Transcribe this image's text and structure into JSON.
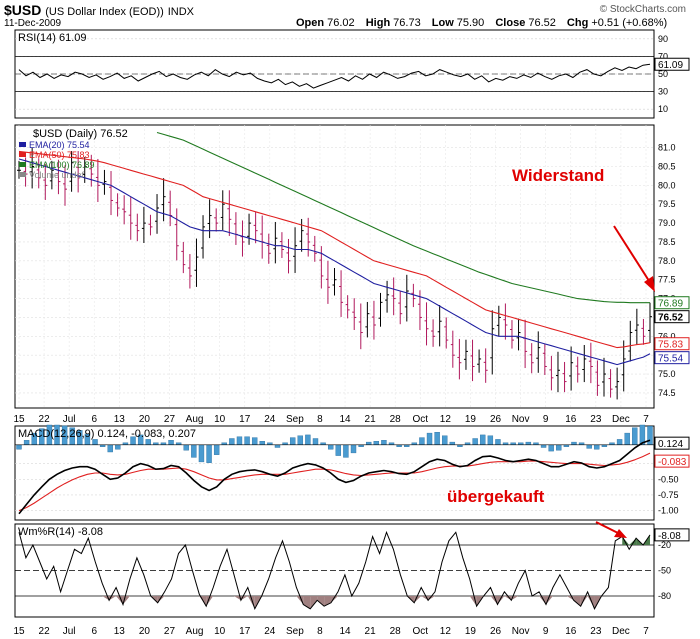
{
  "header": {
    "symbol": "$USD",
    "description": "(US Dollar Index (EOD))",
    "exchange": "INDX",
    "date": "11-Dec-2009",
    "brand": "© StockCharts.com",
    "open_label": "Open",
    "open": "76.02",
    "high_label": "High",
    "high": "76.73",
    "low_label": "Low",
    "low": "75.90",
    "close_label": "Close",
    "close": "76.52",
    "chg_label": "Chg",
    "chg": "+0.51 (+0.68%)"
  },
  "annotations": {
    "resistance": "Widerstand",
    "overbought": "übergekauft"
  },
  "colors": {
    "ema20": "#1f1fa0",
    "ema50": "#e02020",
    "ema100": "#207a20",
    "bar_up": "#000000",
    "bar_down": "#b0185c",
    "annotation": "#e00000",
    "macd_hist": "#4a9bd0",
    "wmr_fill": "#a08080"
  },
  "chart_data": [
    {
      "type": "line",
      "title": "RSI(14) 61.09",
      "ylim": [
        0,
        100
      ],
      "yticks": [
        10,
        30,
        50,
        70,
        90
      ],
      "reference_lines": [
        30,
        70
      ],
      "last_value": 61.09,
      "series": [
        {
          "name": "RSI(14)",
          "values": [
            55,
            48,
            52,
            46,
            50,
            45,
            49,
            47,
            52,
            50,
            46,
            49,
            44,
            47,
            51,
            45,
            48,
            42,
            46,
            50,
            53,
            47,
            50,
            46,
            44,
            49,
            52,
            48,
            55,
            50,
            47,
            52,
            49,
            51,
            45,
            42,
            40,
            44,
            38,
            41,
            36,
            39,
            34,
            37,
            40,
            43,
            46,
            42,
            48,
            44,
            50,
            46,
            52,
            49,
            45,
            47,
            51,
            53,
            48,
            50,
            55,
            52,
            49,
            47,
            50,
            44,
            48,
            41,
            45,
            43,
            47,
            45,
            49,
            46,
            51,
            47,
            44,
            48,
            50,
            46,
            52,
            55,
            50,
            48,
            53,
            57,
            54,
            58,
            56,
            60,
            61.09
          ]
        }
      ]
    },
    {
      "type": "bar",
      "title": "$USD (Daily) 76.52",
      "ylim": [
        74.1,
        81.6
      ],
      "yticks": [
        74.5,
        75.0,
        75.5,
        76.0,
        76.5,
        77.0,
        77.5,
        78.0,
        78.5,
        79.0,
        79.5,
        80.0,
        80.5,
        81.0
      ],
      "x_tick_labels": [
        "15",
        "22",
        "Jul",
        "6",
        "13",
        "20",
        "27",
        "Aug",
        "10",
        "17",
        "24",
        "Sep",
        "8",
        "14",
        "21",
        "28",
        "Oct",
        "12",
        "19",
        "26",
        "Nov",
        "9",
        "16",
        "23",
        "Dec",
        "7"
      ],
      "legend": [
        {
          "name": "EMA(20)",
          "value": "75.54"
        },
        {
          "name": "EMA(50)",
          "value": "75.83"
        },
        {
          "name": "EMA(100)",
          "value": "76.89"
        },
        {
          "name": "Volume undef",
          "value": ""
        }
      ],
      "last_labels": [
        {
          "name": "EMA(100)",
          "value": "76.89"
        },
        {
          "name": "Close",
          "value": "76.52"
        },
        {
          "name": "EMA(50)",
          "value": "75.83"
        },
        {
          "name": "EMA(20)",
          "value": "75.54"
        }
      ],
      "close": [
        80.4,
        80.3,
        80.5,
        80.2,
        80.0,
        80.4,
        80.1,
        79.9,
        80.6,
        80.2,
        80.5,
        80.3,
        80.0,
        80.1,
        79.6,
        79.4,
        79.3,
        79.0,
        78.8,
        79.0,
        78.9,
        79.4,
        79.7,
        79.2,
        78.4,
        77.9,
        77.6,
        78.1,
        78.9,
        79.2,
        79.0,
        79.5,
        79.1,
        78.7,
        78.5,
        79.0,
        78.8,
        78.5,
        78.2,
        78.6,
        78.3,
        78.0,
        78.4,
        78.8,
        78.5,
        78.2,
        77.6,
        77.3,
        77.5,
        76.9,
        76.7,
        76.5,
        76.1,
        76.6,
        76.3,
        76.9,
        77.1,
        77.0,
        76.6,
        77.2,
        77.0,
        76.5,
        76.2,
        76.0,
        76.4,
        75.9,
        75.5,
        75.3,
        75.6,
        75.2,
        75.4,
        75.1,
        76.2,
        76.5,
        76.3,
        75.9,
        76.1,
        75.6,
        75.3,
        75.7,
        75.2,
        74.9,
        75.1,
        74.8,
        75.3,
        75.0,
        75.4,
        75.2,
        74.7,
        75.0,
        74.6,
        74.8,
        75.4,
        76.1,
        76.3,
        76.0,
        76.52
      ],
      "ema20": [
        80.7,
        80.65,
        80.6,
        80.55,
        80.5,
        80.45,
        80.4,
        80.35,
        80.3,
        80.25,
        80.2,
        80.15,
        80.1,
        80.05,
        80.0,
        79.9,
        79.8,
        79.7,
        79.6,
        79.5,
        79.4,
        79.3,
        79.25,
        79.2,
        79.1,
        79.0,
        78.9,
        78.85,
        78.8,
        78.8,
        78.8,
        78.8,
        78.75,
        78.7,
        78.65,
        78.6,
        78.55,
        78.5,
        78.45,
        78.4,
        78.4,
        78.35,
        78.3,
        78.3,
        78.3,
        78.25,
        78.2,
        78.1,
        78.0,
        77.9,
        77.8,
        77.7,
        77.6,
        77.5,
        77.4,
        77.35,
        77.3,
        77.25,
        77.2,
        77.15,
        77.1,
        77.05,
        77.0,
        76.9,
        76.8,
        76.7,
        76.6,
        76.5,
        76.4,
        76.3,
        76.2,
        76.1,
        76.05,
        76.0,
        76.0,
        76.0,
        76.0,
        75.95,
        75.9,
        75.85,
        75.8,
        75.75,
        75.7,
        75.65,
        75.6,
        75.55,
        75.5,
        75.45,
        75.4,
        75.35,
        75.3,
        75.25,
        75.3,
        75.35,
        75.4,
        75.45,
        75.54
      ],
      "ema50": [
        80.9,
        80.88,
        80.86,
        80.84,
        80.82,
        80.8,
        80.78,
        80.76,
        80.74,
        80.72,
        80.7,
        80.67,
        80.64,
        80.6,
        80.55,
        80.5,
        80.45,
        80.4,
        80.35,
        80.3,
        80.25,
        80.2,
        80.15,
        80.1,
        80.05,
        80.0,
        79.9,
        79.8,
        79.7,
        79.65,
        79.6,
        79.55,
        79.5,
        79.45,
        79.4,
        79.35,
        79.3,
        79.25,
        79.2,
        79.15,
        79.1,
        79.05,
        79.0,
        78.95,
        78.9,
        78.85,
        78.8,
        78.7,
        78.6,
        78.5,
        78.4,
        78.3,
        78.2,
        78.1,
        78.0,
        77.95,
        77.9,
        77.85,
        77.8,
        77.75,
        77.7,
        77.65,
        77.6,
        77.5,
        77.4,
        77.3,
        77.2,
        77.1,
        77.0,
        76.9,
        76.8,
        76.7,
        76.65,
        76.6,
        76.55,
        76.5,
        76.45,
        76.4,
        76.35,
        76.3,
        76.25,
        76.2,
        76.15,
        76.1,
        76.05,
        76.0,
        75.95,
        75.9,
        75.85,
        75.8,
        75.75,
        75.7,
        75.72,
        75.75,
        75.78,
        75.8,
        75.83
      ],
      "ema100": [
        null,
        null,
        null,
        null,
        null,
        null,
        null,
        null,
        null,
        null,
        null,
        null,
        null,
        null,
        null,
        null,
        null,
        null,
        null,
        null,
        null,
        81.4,
        81.35,
        81.3,
        81.25,
        81.2,
        81.12,
        81.04,
        80.96,
        80.88,
        80.8,
        80.72,
        80.64,
        80.56,
        80.48,
        80.4,
        80.32,
        80.24,
        80.16,
        80.08,
        80.0,
        79.92,
        79.84,
        79.76,
        79.68,
        79.6,
        79.52,
        79.44,
        79.36,
        79.28,
        79.2,
        79.12,
        79.04,
        78.96,
        78.88,
        78.8,
        78.72,
        78.64,
        78.56,
        78.48,
        78.4,
        78.33,
        78.26,
        78.19,
        78.12,
        78.05,
        77.98,
        77.91,
        77.84,
        77.77,
        77.7,
        77.64,
        77.58,
        77.52,
        77.46,
        77.4,
        77.36,
        77.32,
        77.28,
        77.24,
        77.2,
        77.16,
        77.12,
        77.08,
        77.04,
        77.0,
        76.98,
        76.96,
        76.94,
        76.92,
        76.91,
        76.9,
        76.9,
        76.89,
        76.89,
        76.89,
        76.89
      ]
    },
    {
      "type": "line",
      "title": "MACD(12,26,9) 0.124, -0.083, 0.207",
      "ylim": [
        -1.15,
        0.35
      ],
      "yticks": [
        0.124,
        -0.083,
        -0.25,
        -0.5,
        -0.75,
        -1.0
      ],
      "series": [
        {
          "name": "MACD",
          "values": [
            -1.05,
            -0.9,
            -0.75,
            -0.62,
            -0.5,
            -0.42,
            -0.36,
            -0.32,
            -0.3,
            -0.3,
            -0.34,
            -0.42,
            -0.5,
            -0.48,
            -0.4,
            -0.3,
            -0.25,
            -0.28,
            -0.34,
            -0.33,
            -0.28,
            -0.3,
            -0.4,
            -0.52,
            -0.62,
            -0.68,
            -0.62,
            -0.5,
            -0.42,
            -0.38,
            -0.36,
            -0.35,
            -0.38,
            -0.42,
            -0.45,
            -0.4,
            -0.32,
            -0.28,
            -0.25,
            -0.27,
            -0.32,
            -0.4,
            -0.5,
            -0.55,
            -0.52,
            -0.45,
            -0.4,
            -0.38,
            -0.36,
            -0.38,
            -0.41,
            -0.42,
            -0.38,
            -0.3,
            -0.22,
            -0.18,
            -0.2,
            -0.26,
            -0.3,
            -0.28,
            -0.2,
            -0.14,
            -0.13,
            -0.16,
            -0.2,
            -0.22,
            -0.2,
            -0.18,
            -0.2,
            -0.25,
            -0.3,
            -0.3,
            -0.26,
            -0.22,
            -0.24,
            -0.3,
            -0.32,
            -0.3,
            -0.25,
            -0.2,
            -0.1,
            0.0,
            0.08,
            0.124
          ]
        },
        {
          "name": "Signal",
          "values": [
            -1.0,
            -0.95,
            -0.88,
            -0.8,
            -0.72,
            -0.64,
            -0.57,
            -0.51,
            -0.46,
            -0.42,
            -0.4,
            -0.4,
            -0.42,
            -0.43,
            -0.42,
            -0.39,
            -0.36,
            -0.34,
            -0.34,
            -0.34,
            -0.33,
            -0.32,
            -0.34,
            -0.38,
            -0.43,
            -0.48,
            -0.51,
            -0.51,
            -0.49,
            -0.47,
            -0.45,
            -0.43,
            -0.42,
            -0.42,
            -0.42,
            -0.42,
            -0.4,
            -0.38,
            -0.36,
            -0.34,
            -0.34,
            -0.35,
            -0.38,
            -0.41,
            -0.43,
            -0.44,
            -0.43,
            -0.42,
            -0.41,
            -0.4,
            -0.4,
            -0.4,
            -0.4,
            -0.38,
            -0.35,
            -0.32,
            -0.3,
            -0.29,
            -0.29,
            -0.29,
            -0.27,
            -0.25,
            -0.23,
            -0.22,
            -0.22,
            -0.22,
            -0.22,
            -0.21,
            -0.21,
            -0.22,
            -0.23,
            -0.24,
            -0.25,
            -0.25,
            -0.25,
            -0.26,
            -0.27,
            -0.28,
            -0.27,
            -0.26,
            -0.23,
            -0.19,
            -0.14,
            -0.083
          ]
        }
      ]
    },
    {
      "type": "line",
      "title": "Wm%R(14) -8.08",
      "ylim": [
        -100,
        0
      ],
      "yticks": [
        -8.08,
        -20,
        -50,
        -80
      ],
      "reference_lines": [
        -20,
        -80
      ],
      "last_value": -8.08,
      "series": [
        {
          "name": "Wm%R(14)",
          "values": [
            -5,
            -35,
            -20,
            -40,
            -60,
            -45,
            -75,
            -50,
            -25,
            -30,
            -12,
            -40,
            -65,
            -85,
            -70,
            -90,
            -60,
            -35,
            -55,
            -80,
            -88,
            -75,
            -60,
            -30,
            -20,
            -50,
            -78,
            -92,
            -70,
            -45,
            -25,
            -55,
            -85,
            -70,
            -95,
            -80,
            -60,
            -35,
            -15,
            -40,
            -70,
            -90,
            -95,
            -85,
            -92,
            -88,
            -75,
            -55,
            -80,
            -65,
            -40,
            -10,
            -30,
            -5,
            -25,
            -55,
            -80,
            -88,
            -70,
            -85,
            -75,
            -40,
            -15,
            -5,
            -35,
            -60,
            -92,
            -80,
            -70,
            -90,
            -75,
            -85,
            -65,
            -50,
            -80,
            -75,
            -90,
            -70,
            -55,
            -70,
            -85,
            -92,
            -75,
            -95,
            -80,
            -70,
            -15,
            -10,
            -25,
            -12,
            -20,
            -8.08
          ]
        }
      ]
    }
  ]
}
